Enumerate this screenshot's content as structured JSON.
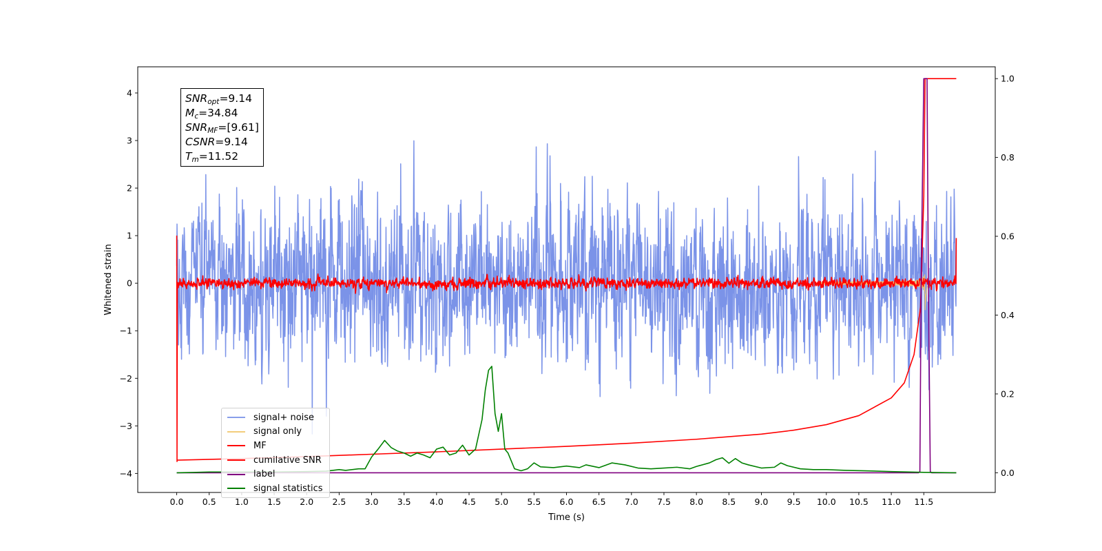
{
  "chart_data": {
    "type": "line",
    "xlabel": "Time (s)",
    "ylabel": "Whitened strain",
    "xlim": [
      -0.6,
      12.6
    ],
    "ylim": [
      -4.4,
      4.55
    ],
    "y2lim": [
      -0.05,
      1.03
    ],
    "x_ticks": [
      "0.0",
      "0.5",
      "1.0",
      "1.5",
      "2.0",
      "2.5",
      "3.0",
      "3.5",
      "4.0",
      "4.5",
      "5.0",
      "5.5",
      "6.0",
      "6.5",
      "7.0",
      "7.5",
      "8.0",
      "8.5",
      "9.0",
      "9.5",
      "10.0",
      "10.5",
      "11.0",
      "11.5"
    ],
    "y_ticks": [
      "−4",
      "−3",
      "−2",
      "−1",
      "0",
      "1",
      "2",
      "3",
      "4"
    ],
    "y2_ticks": [
      "0.0",
      "0.2",
      "0.4",
      "0.6",
      "0.8",
      "1.0"
    ],
    "annotation": {
      "snr_opt": {
        "base": "SNR",
        "sub": "opt",
        "value": "=9.14"
      },
      "mc": {
        "base": "M",
        "sub": "c",
        "value": "=34.84"
      },
      "snr_mf": {
        "base": "SNR",
        "sub": "MF",
        "value": "=[9.61]"
      },
      "csnr": {
        "base": "CSNR",
        "value": "=9.14"
      },
      "tm": {
        "base": "T",
        "sub": "m",
        "value": "=11.52"
      }
    },
    "series": [
      {
        "name": "signal+ noise",
        "color": "#7b93e8",
        "axis": "left",
        "style": "noise",
        "x_range": [
          0.0,
          12.0
        ],
        "amplitude_std": 1.1
      },
      {
        "name": "signal only",
        "color": "#f2c66d",
        "axis": "left",
        "style": "chirp",
        "merger_time": 11.52
      },
      {
        "name": "MF",
        "color": "#ff0000",
        "axis": "left",
        "style": "noise",
        "x_range": [
          0.0,
          12.0
        ],
        "amplitude_std": 0.09
      },
      {
        "name": "cumilative SNR",
        "color": "#ff0000",
        "axis": "right",
        "x": [
          0.0,
          0.02,
          1.0,
          2.0,
          3.0,
          4.0,
          5.0,
          6.0,
          7.0,
          8.0,
          9.0,
          9.5,
          10.0,
          10.5,
          11.0,
          11.2,
          11.35,
          11.45,
          11.5,
          11.52,
          12.0
        ],
        "y": [
          0.032,
          0.032,
          0.036,
          0.041,
          0.047,
          0.053,
          0.06,
          0.067,
          0.075,
          0.085,
          0.098,
          0.108,
          0.122,
          0.145,
          0.19,
          0.228,
          0.3,
          0.42,
          0.7,
          1.0,
          1.0
        ]
      },
      {
        "name": "label",
        "color": "#800080",
        "axis": "right",
        "x": [
          0.0,
          11.42,
          11.44,
          11.46,
          11.5,
          11.55,
          11.57,
          11.6,
          11.62,
          12.0
        ],
        "y": [
          0.0,
          0.0,
          0.003,
          0.5,
          1.0,
          1.0,
          0.5,
          0.003,
          0.0,
          0.0
        ]
      },
      {
        "name": "signal statistics",
        "color": "#008000",
        "axis": "right",
        "x": [
          0.0,
          0.3,
          0.5,
          1.0,
          1.5,
          2.0,
          2.3,
          2.5,
          2.6,
          2.8,
          2.9,
          3.0,
          3.1,
          3.2,
          3.3,
          3.4,
          3.5,
          3.6,
          3.7,
          3.8,
          3.9,
          4.0,
          4.1,
          4.2,
          4.3,
          4.4,
          4.5,
          4.6,
          4.7,
          4.75,
          4.8,
          4.85,
          4.9,
          4.95,
          5.0,
          5.05,
          5.1,
          5.2,
          5.3,
          5.4,
          5.5,
          5.6,
          5.8,
          6.0,
          6.2,
          6.3,
          6.5,
          6.7,
          6.9,
          7.1,
          7.3,
          7.5,
          7.7,
          7.9,
          8.0,
          8.2,
          8.3,
          8.4,
          8.5,
          8.6,
          8.7,
          8.8,
          9.0,
          9.2,
          9.3,
          9.4,
          9.6,
          9.8,
          10.0,
          10.3,
          10.6,
          11.0,
          11.5,
          12.0
        ],
        "y": [
          0.0,
          0.001,
          0.002,
          0.002,
          0.002,
          0.003,
          0.004,
          0.008,
          0.006,
          0.01,
          0.01,
          0.04,
          0.06,
          0.082,
          0.064,
          0.055,
          0.05,
          0.042,
          0.05,
          0.045,
          0.038,
          0.06,
          0.065,
          0.045,
          0.05,
          0.07,
          0.045,
          0.06,
          0.135,
          0.21,
          0.26,
          0.27,
          0.15,
          0.105,
          0.15,
          0.06,
          0.05,
          0.01,
          0.005,
          0.01,
          0.025,
          0.015,
          0.013,
          0.017,
          0.013,
          0.02,
          0.013,
          0.025,
          0.02,
          0.012,
          0.01,
          0.012,
          0.014,
          0.01,
          0.016,
          0.025,
          0.033,
          0.038,
          0.024,
          0.036,
          0.025,
          0.02,
          0.012,
          0.014,
          0.025,
          0.018,
          0.01,
          0.008,
          0.008,
          0.006,
          0.005,
          0.003,
          0.001,
          0.0
        ]
      }
    ],
    "legend_position": "lower-left",
    "grid": false
  }
}
